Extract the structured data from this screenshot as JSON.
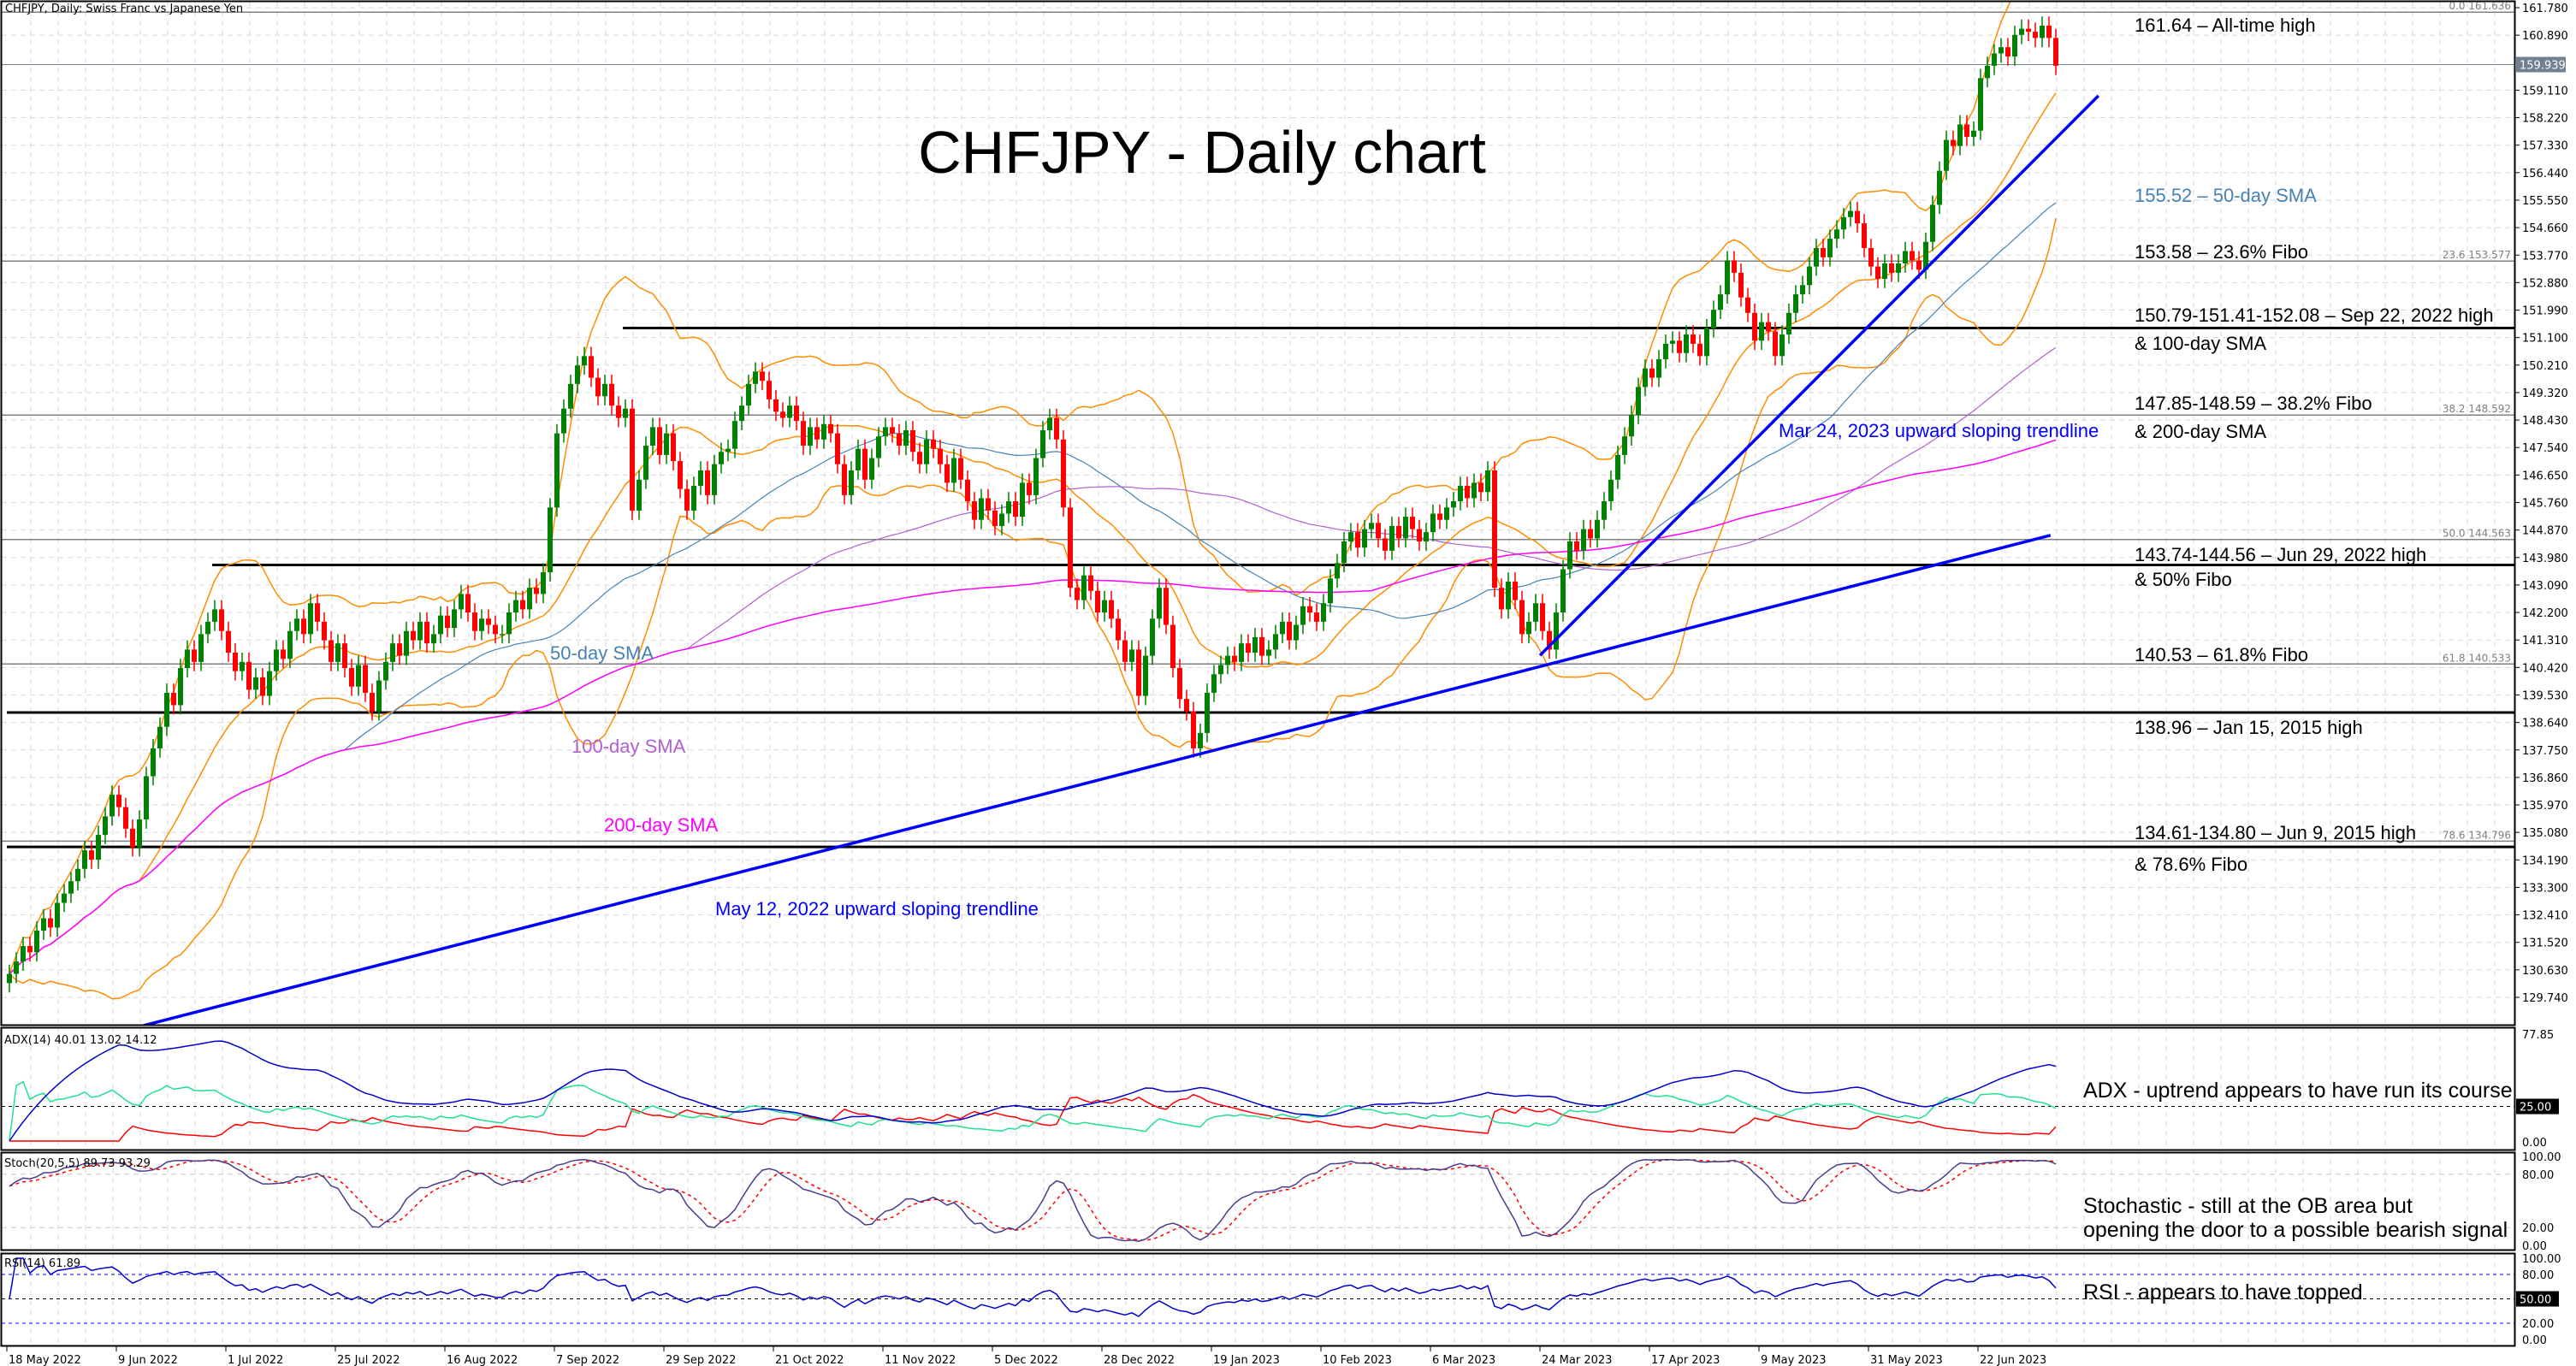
{
  "header": {
    "symbol_title": "CHFJPY, Daily:  Swiss Franc vs Japanese Yen"
  },
  "title": "CHFJPY - Daily chart",
  "colors": {
    "bull": "#008000",
    "bear": "#ff0000",
    "bollinger": "#ff8c00",
    "sma50": "#4682b4",
    "sma100": "#b060d0",
    "sma200": "#ff00ff",
    "trendline": "#0000ff",
    "adx": "#0000cd",
    "plus_di": "#20e090",
    "minus_di": "#ff0000",
    "stoch_main": "#483d8b",
    "stoch_signal": "#ff0000",
    "rsi": "#0000cd",
    "price_box": "#708090",
    "level_line": "#000000",
    "fibo_line": "#808080"
  },
  "chart_data": {
    "type": "candlestick",
    "symbol": "CHFJPY",
    "timeframe": "Daily",
    "close": [
      130.5,
      130.9,
      131.4,
      131.2,
      131.9,
      132.3,
      132.0,
      132.8,
      133.1,
      133.5,
      133.9,
      134.5,
      134.2,
      135.0,
      135.6,
      136.3,
      135.9,
      135.2,
      134.6,
      135.5,
      136.9,
      137.8,
      138.5,
      139.6,
      139.2,
      140.4,
      141.0,
      140.6,
      141.5,
      141.9,
      142.3,
      141.6,
      140.9,
      140.3,
      140.6,
      139.7,
      140.1,
      139.5,
      140.3,
      141.0,
      140.7,
      141.6,
      142.0,
      141.5,
      142.5,
      141.9,
      141.3,
      140.6,
      141.2,
      140.4,
      139.8,
      140.5,
      139.6,
      139.0,
      140.0,
      140.6,
      141.2,
      140.8,
      141.6,
      141.3,
      141.9,
      141.2,
      141.5,
      142.1,
      141.7,
      142.3,
      142.8,
      142.2,
      141.6,
      142.0,
      141.8,
      141.5,
      141.5,
      142.2,
      142.6,
      142.3,
      143.0,
      142.8,
      143.5,
      145.6,
      148.0,
      148.8,
      149.6,
      150.2,
      150.5,
      149.8,
      149.2,
      149.6,
      148.9,
      148.5,
      148.8,
      145.5,
      146.5,
      147.6,
      148.2,
      147.3,
      148.0,
      147.1,
      146.2,
      145.5,
      146.3,
      146.8,
      146.0,
      147.0,
      147.4,
      147.5,
      148.4,
      148.9,
      149.6,
      150.0,
      149.7,
      149.1,
      148.7,
      148.5,
      148.9,
      148.4,
      147.6,
      148.2,
      147.8,
      148.3,
      148.0,
      147.0,
      146.0,
      146.8,
      147.5,
      146.5,
      147.2,
      147.9,
      148.2,
      148.0,
      147.6,
      148.1,
      147.4,
      147.0,
      147.8,
      147.5,
      147.0,
      146.4,
      147.2,
      146.5,
      145.8,
      145.2,
      145.9,
      145.5,
      145.0,
      145.4,
      145.8,
      145.3,
      146.4,
      146.0,
      147.2,
      148.1,
      148.5,
      147.8,
      145.6,
      143.0,
      142.6,
      143.4,
      142.9,
      142.2,
      142.6,
      142.0,
      141.3,
      140.6,
      141.0,
      139.5,
      140.8,
      142.0,
      143.0,
      141.8,
      140.4,
      139.4,
      139.0,
      137.8,
      138.3,
      139.6,
      140.2,
      140.5,
      140.8,
      140.6,
      141.2,
      140.9,
      141.4,
      140.8,
      141.0,
      141.5,
      141.9,
      141.3,
      141.8,
      142.4,
      142.2,
      141.9,
      142.5,
      143.3,
      143.8,
      144.5,
      144.8,
      144.3,
      144.9,
      145.1,
      144.6,
      144.2,
      145.0,
      144.6,
      145.3,
      144.9,
      144.5,
      144.8,
      145.4,
      145.2,
      145.6,
      145.8,
      146.3,
      145.9,
      146.4,
      146.1,
      146.8,
      143.0,
      142.3,
      143.2,
      142.6,
      141.5,
      141.9,
      142.5,
      141.6,
      141.0,
      142.2,
      143.6,
      144.5,
      144.2,
      144.9,
      144.6,
      145.2,
      145.8,
      146.5,
      147.3,
      147.9,
      148.6,
      149.5,
      150.1,
      149.8,
      150.4,
      150.9,
      151.0,
      150.6,
      151.2,
      150.9,
      150.5,
      151.4,
      152.0,
      152.5,
      153.6,
      153.2,
      152.4,
      151.9,
      151.0,
      151.6,
      151.3,
      150.5,
      151.2,
      151.9,
      152.5,
      152.8,
      153.4,
      154.0,
      153.7,
      154.3,
      154.6,
      155.0,
      155.2,
      154.8,
      154.0,
      153.4,
      153.0,
      153.5,
      153.2,
      153.5,
      153.9,
      153.6,
      153.3,
      154.2,
      155.4,
      156.5,
      157.5,
      157.3,
      158.0,
      157.6,
      157.8,
      159.5,
      159.9,
      160.3,
      160.5,
      160.2,
      160.9,
      161.1,
      161.0,
      160.8,
      161.2,
      160.8,
      159.9
    ],
    "x_tick_labels": [
      "18 May 2022",
      "9 Jun 2022",
      "1 Jul 2022",
      "25 Jul 2022",
      "16 Aug 2022",
      "7 Sep 2022",
      "29 Sep 2022",
      "21 Oct 2022",
      "11 Nov 2022",
      "5 Dec 2022",
      "28 Dec 2022",
      "19 Jan 2023",
      "10 Feb 2023",
      "6 Mar 2023",
      "24 Mar 2023",
      "17 Apr 2023",
      "9 May 2023",
      "31 May 2023",
      "22 Jun 2023"
    ],
    "price_axis": {
      "ylim": [
        129.74,
        161.78
      ],
      "ticks": [
        "161.780",
        "160.890",
        "159.110",
        "158.220",
        "157.330",
        "156.440",
        "155.550",
        "154.660",
        "153.770",
        "152.880",
        "151.990",
        "151.100",
        "150.210",
        "149.320",
        "148.430",
        "147.540",
        "146.650",
        "145.760",
        "144.870",
        "143.980",
        "143.090",
        "142.200",
        "141.310",
        "140.420",
        "139.530",
        "138.640",
        "137.750",
        "136.860",
        "135.970",
        "135.080",
        "134.190",
        "133.300",
        "132.410",
        "131.520",
        "130.630",
        "129.740"
      ]
    },
    "current_price": "159.939",
    "levels": [
      {
        "name": "Sep 22, 2022 high",
        "price": 151.41,
        "start_bar": 90
      },
      {
        "name": "Jun 29, 2022 high",
        "price": 143.74,
        "start_bar": 30
      },
      {
        "name": "Jan 15, 2015 high",
        "price": 138.96,
        "start_bar": 0
      },
      {
        "name": "Jun 9, 2015 high",
        "price": 134.61,
        "start_bar": 0
      }
    ],
    "fibo": [
      {
        "label": "0.0 161.636",
        "price": 161.636
      },
      {
        "label": "23.6 153.577",
        "price": 153.577
      },
      {
        "label": "38.2 148.592",
        "price": 148.592
      },
      {
        "label": "50.0 144.563",
        "price": 144.563
      },
      {
        "label": "61.8 140.533",
        "price": 140.533
      },
      {
        "label": "78.6 134.796",
        "price": 134.796
      }
    ],
    "trendlines": [
      {
        "label": "May 12, 2022 upward sloping trendline",
        "from": {
          "bar": 19.5,
          "price": 128.8
        },
        "to": {
          "bar": 298.6,
          "price": 144.7
        }
      },
      {
        "label": "Mar 24, 2023 upward sloping trendline",
        "from": {
          "bar": 224,
          "price": 140.81
        },
        "to": {
          "bar": 305.6,
          "price": 158.93
        }
      }
    ],
    "ma_labels": {
      "sma50": "50-day SMA",
      "sma100": "100-day SMA",
      "sma200": "200-day SMA"
    },
    "adx": {
      "header": "ADX(14) 40.01 13.02 14.12",
      "max_label": "77.85",
      "level_label": "25.00",
      "min_label": "0.00",
      "range": [
        0,
        77.85
      ],
      "level": 25
    },
    "stoch": {
      "header": "Stoch(20,5,5) 89.73 93.29",
      "ticks": [
        "100.00",
        "80.00",
        "20.00",
        "0.00"
      ]
    },
    "rsi": {
      "header": "RSI(14) 61.89",
      "ticks": [
        "100.00",
        "80.00",
        "20.00",
        "0.00"
      ],
      "mid_label": "50.00"
    }
  },
  "annotations": {
    "ath": "161.64 – All-time high",
    "sma50": "155.52 – 50-day SMA",
    "fibo236": "153.58 – 23.6% Fibo",
    "sep22_1": "150.79-151.41-152.08 – Sep 22, 2022 high",
    "sep22_2": "& 100-day SMA",
    "fibo382_1": "147.85-148.59 – 38.2% Fibo",
    "fibo382_2": "& 200-day SMA",
    "jun29_1": "143.74-144.56 – Jun 29, 2022 high",
    "jun29_2": "& 50% Fibo",
    "fibo618": "140.53 – 61.8% Fibo",
    "jan15": "138.96 – Jan 15, 2015 high",
    "jun9_1": "134.61-134.80 – Jun 9, 2015 high",
    "jun9_2": "& 78.6% Fibo",
    "adx_note": "ADX - uptrend appears to have run its course",
    "stoch_note_1": "Stochastic - still at the OB area but",
    "stoch_note_2": "opening the door to a possible bearish signal",
    "rsi_note": "RSI - appears to have topped"
  }
}
